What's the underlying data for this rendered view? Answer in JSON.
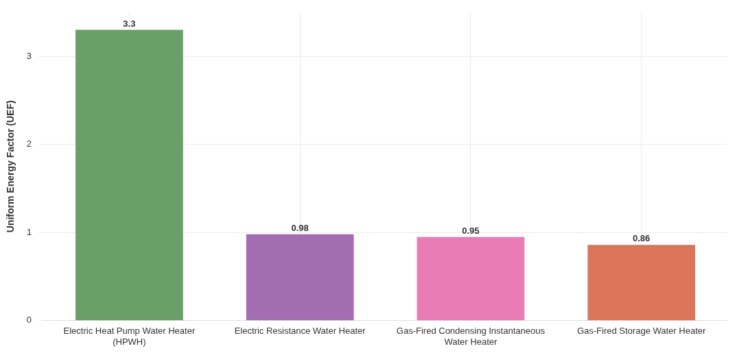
{
  "chart_data": {
    "type": "bar",
    "ylabel": "Uniform Energy Factor (UEF)",
    "categories": [
      "Electric Heat Pump Water Heater (HPWH)",
      "Electric Resistance Water Heater",
      "Gas-Fired Condensing Instantaneous Water Heater",
      "Gas-Fired Storage Water Heater"
    ],
    "values": [
      3.3,
      0.98,
      0.95,
      0.86
    ],
    "colors": [
      "#6b9f68",
      "#a26db1",
      "#e97bb5",
      "#db755a"
    ],
    "ylim": [
      0,
      3.5
    ],
    "yticks": [
      0,
      1,
      2,
      3
    ],
    "grid": true,
    "data_labels": true,
    "legend": false
  }
}
